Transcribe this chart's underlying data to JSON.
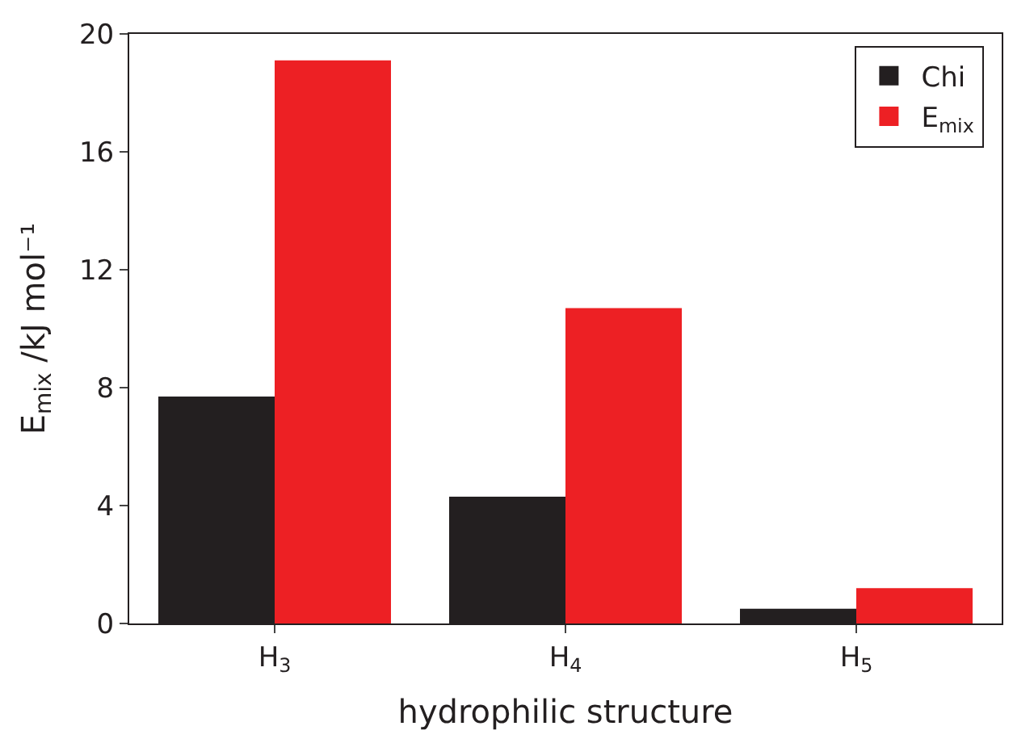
{
  "chart_data": {
    "type": "bar",
    "xlabel": "hydrophilic structure",
    "ylabel": "E$_{mix}$ /kJ mol⁻¹",
    "categories": [
      "H$_{3}$",
      "H$_{4}$",
      "H$_{5}$"
    ],
    "series": [
      {
        "name": "Chi",
        "color": "#231f20",
        "values": [
          7.7,
          4.3,
          0.5
        ]
      },
      {
        "name": "E$_{mix}$",
        "color": "#ed2024",
        "values": [
          19.1,
          10.7,
          1.2
        ]
      }
    ],
    "ylim": [
      0,
      20
    ],
    "yticks": [
      0,
      4,
      8,
      12,
      16,
      20
    ],
    "legend": "top right"
  }
}
